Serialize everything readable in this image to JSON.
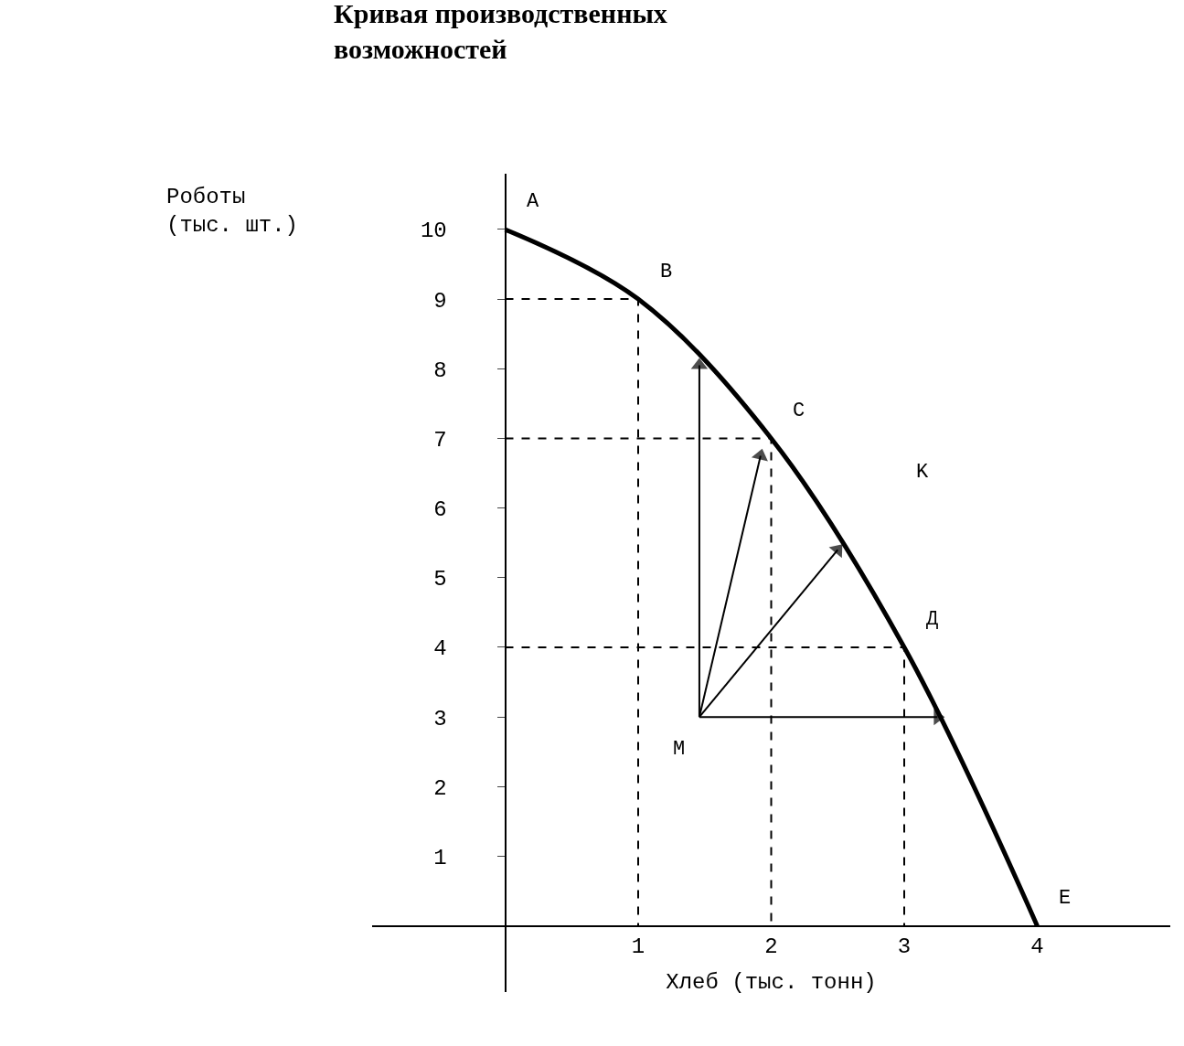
{
  "chart_data": {
    "type": "line",
    "title": "Кривая производственных возможностей",
    "xlabel": "Хлеб (тыс. тонн)",
    "ylabel": "Роботы (тыс. шт.)",
    "xlim": [
      -1,
      5
    ],
    "ylim": [
      -0.95,
      10.8
    ],
    "xticks": [
      1,
      2,
      3,
      4
    ],
    "yticks": [
      1,
      2,
      3,
      4,
      5,
      6,
      7,
      8,
      9,
      10
    ],
    "series": [
      {
        "color": "#000000",
        "x": [
          0,
          1,
          2,
          3,
          4
        ],
        "values": [
          10,
          9,
          7,
          4,
          0
        ],
        "line_style": "solid",
        "marker": "none"
      },
      {
        "color": "#000000",
        "x": [
          0,
          1,
          1
        ],
        "values": [
          9,
          9,
          0
        ],
        "line_style": "dashed",
        "marker": "none"
      },
      {
        "color": "#000000",
        "x": [
          0,
          2,
          2
        ],
        "values": [
          7,
          7,
          0
        ],
        "line_style": "dashed",
        "marker": "none"
      },
      {
        "color": "#000000",
        "x": [
          0,
          3,
          3
        ],
        "values": [
          4,
          4,
          0
        ],
        "line_style": "dashed",
        "marker": "none"
      },
      {
        "color": "#000000",
        "x": [
          1.46,
          1.46
        ],
        "values": [
          3,
          8.05
        ],
        "line_style": "solid",
        "marker": "triangle"
      },
      {
        "color": "#000000",
        "x": [
          1.46,
          1.92
        ],
        "values": [
          3,
          6.75
        ],
        "line_style": "solid",
        "marker": "triangle"
      },
      {
        "color": "#000000",
        "x": [
          1.46,
          2.5
        ],
        "values": [
          3,
          5.4
        ],
        "line_style": "solid",
        "marker": "triangle"
      },
      {
        "color": "#000000",
        "x": [
          1.46,
          3.25
        ],
        "values": [
          3,
          3
        ],
        "line_style": "solid",
        "marker": "triangle"
      }
    ],
    "annotations": [
      {
        "text": "A",
        "x": 0,
        "y": 10
      },
      {
        "text": "B",
        "x": 1,
        "y": 9
      },
      {
        "text": "C",
        "x": 2,
        "y": 7
      },
      "K",
      {
        "text": "Д",
        "x": 3,
        "y": 4
      },
      {
        "text": "E",
        "x": 4,
        "y": 0
      },
      {
        "text": "M",
        "x": 1.46,
        "y": 3
      }
    ]
  }
}
